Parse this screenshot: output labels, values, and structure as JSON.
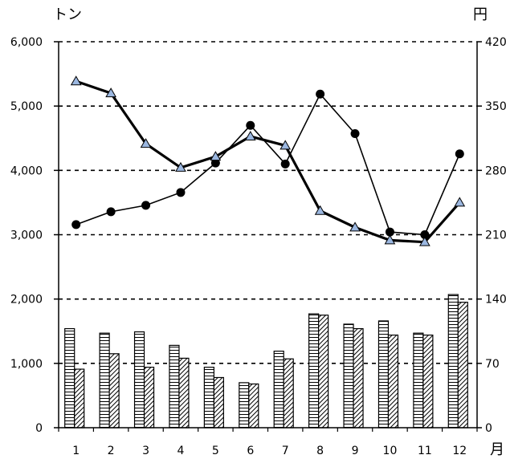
{
  "chart_data": {
    "type": "bar+line",
    "title": "",
    "left_unit": "トン",
    "right_unit": "円",
    "x_unit": "月",
    "categories": [
      "1",
      "2",
      "3",
      "4",
      "5",
      "6",
      "7",
      "8",
      "9",
      "10",
      "11",
      "12"
    ],
    "left_axis": {
      "min": 0,
      "max": 6000,
      "ticks": [
        "0",
        "1,000",
        "2,000",
        "3,000",
        "4,000",
        "5,000",
        "6,000"
      ]
    },
    "right_axis": {
      "min": 0,
      "max": 420,
      "ticks": [
        "0",
        "70",
        "140",
        "210",
        "280",
        "350",
        "420"
      ]
    },
    "grid": "horizontal dotted",
    "series": [
      {
        "kind": "bar",
        "axis": "left",
        "pattern": "horizontal-stripes",
        "values": [
          1540,
          1470,
          1490,
          1280,
          940,
          700,
          1190,
          1770,
          1610,
          1660,
          1470,
          2070
        ]
      },
      {
        "kind": "bar",
        "axis": "left",
        "pattern": "diagonal-hatch",
        "values": [
          910,
          1150,
          940,
          1080,
          780,
          680,
          1070,
          1750,
          1540,
          1440,
          1440,
          1950
        ]
      },
      {
        "kind": "line",
        "axis": "right",
        "marker": "circle",
        "color": "#000000",
        "values": [
          221,
          235,
          242,
          256,
          288,
          329,
          287,
          363,
          320,
          213,
          210,
          298
        ]
      },
      {
        "kind": "line",
        "axis": "right",
        "marker": "triangle",
        "color": "#000000",
        "marker_fill": "#9bb7e0",
        "values": [
          377,
          364,
          309,
          283,
          295,
          317,
          307,
          236,
          218,
          204,
          202,
          245
        ]
      }
    ]
  }
}
